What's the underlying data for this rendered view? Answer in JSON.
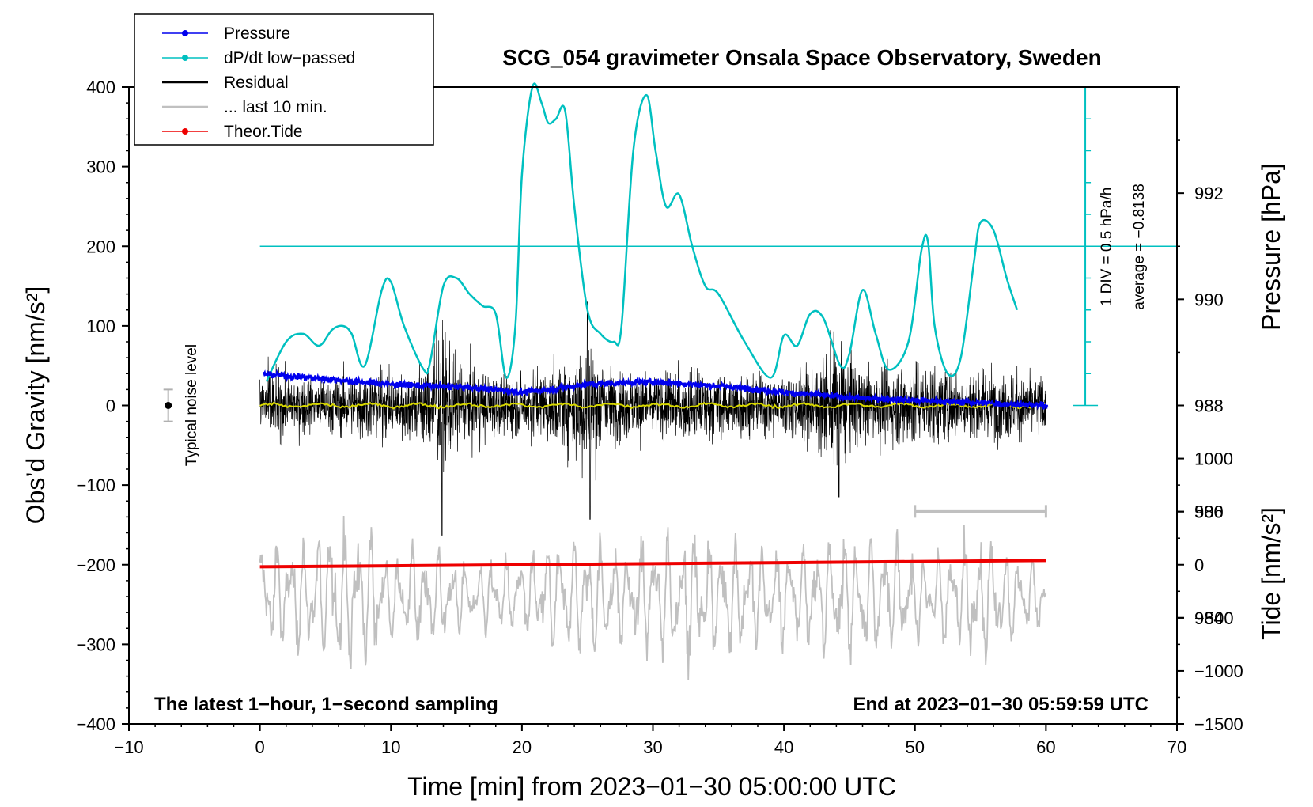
{
  "chart_data": {
    "type": "line",
    "title": "SCG_054 gravimeter Onsala Space Observatory, Sweden",
    "xlabel": "Time [min] from 2023−01−30 05:00:00 UTC",
    "ylabel_left": "Obs’d Gravity [nm/s²]",
    "ylabel_pressure": "Pressure [hPa]",
    "ylabel_tide": "Tide [nm/s²]",
    "xlim": [
      -10,
      70
    ],
    "ylim_left": [
      -400,
      400
    ],
    "ylim_pressure": [
      982,
      994
    ],
    "ylim_tide": [
      -1500,
      4500
    ],
    "x_ticks": [
      "−10",
      "0",
      "10",
      "20",
      "30",
      "40",
      "50",
      "60",
      "70"
    ],
    "x_tick_values": [
      -10,
      0,
      10,
      20,
      30,
      40,
      50,
      60,
      70
    ],
    "y_left_ticks": [
      "400",
      "300",
      "200",
      "100",
      "0",
      "−100",
      "−200",
      "−300",
      "−400"
    ],
    "y_left_tick_values": [
      400,
      300,
      200,
      100,
      0,
      -100,
      -200,
      -300,
      -400
    ],
    "pressure_ticks": [
      "992",
      "990",
      "988",
      "986",
      "984"
    ],
    "pressure_tick_values": [
      992,
      990,
      988,
      986,
      984
    ],
    "tide_ticks": [
      "1000",
      "500",
      "0",
      "−500",
      "−1000",
      "−1500"
    ],
    "tide_tick_values": [
      1000,
      500,
      0,
      -500,
      -1000,
      -1500
    ],
    "legend": [
      {
        "label": "Pressure",
        "color": "#0000ee",
        "marker": true
      },
      {
        "label": "dP/dt low−passed",
        "color": "#00c0c0",
        "marker": true
      },
      {
        "label": "Residual",
        "color": "#000000",
        "marker": false
      },
      {
        "label": "... last 10 min.",
        "color": "#c0c0c0",
        "marker": false
      },
      {
        "label": "Theor.Tide",
        "color": "#ee0000",
        "marker": true
      }
    ],
    "noise_label": "Typical noise level",
    "noise_level": {
      "x": -7,
      "y": 0,
      "err": 20
    },
    "scale_bar_text": "1 DIV = 0.5 hPa/h",
    "average_text": "average = −0.8138",
    "left_note": "The latest 1−hour, 1−second sampling",
    "right_note": "End at 2023−01−30 05:59:59 UTC",
    "last10min_range": [
      50,
      60
    ],
    "dpdt_zero_line": 200,
    "series": [
      {
        "name": "Pressure",
        "axis": "pressure",
        "x": [
          0,
          5,
          10,
          15,
          18,
          20,
          22,
          25,
          30,
          33,
          36,
          40,
          45,
          50,
          55,
          60
        ],
        "y": [
          988.6,
          988.5,
          988.4,
          988.35,
          988.3,
          988.25,
          988.3,
          988.4,
          988.45,
          988.4,
          988.35,
          988.25,
          988.15,
          988.1,
          988.05,
          988.0
        ]
      },
      {
        "name": "dP/dt low-passed",
        "axis": "left",
        "x": [
          0.5,
          2,
          3.3,
          4.5,
          5.5,
          6.3,
          7,
          8,
          9.3,
          10,
          11,
          12.5,
          13,
          14,
          15,
          16,
          17,
          18,
          18.8,
          19.5,
          20,
          20.8,
          21.5,
          22,
          22.6,
          23.3,
          24,
          25,
          26,
          27,
          27.6,
          28.5,
          29.5,
          30.2,
          31,
          32,
          33,
          34,
          35,
          37,
          39,
          40,
          41,
          42,
          43,
          44.3,
          45,
          46,
          47,
          48,
          49.5,
          50.5,
          51,
          51.5,
          52.5,
          53.5,
          54.5,
          55,
          56,
          57,
          57.8
        ],
        "y": [
          30,
          80,
          90,
          75,
          95,
          100,
          90,
          50,
          145,
          155,
          100,
          45,
          55,
          150,
          160,
          140,
          125,
          115,
          35,
          100,
          290,
          400,
          380,
          355,
          360,
          370,
          250,
          120,
          90,
          80,
          100,
          320,
          390,
          320,
          250,
          265,
          200,
          150,
          140,
          80,
          35,
          88,
          75,
          115,
          110,
          50,
          65,
          145,
          90,
          45,
          80,
          195,
          205,
          100,
          40,
          60,
          180,
          230,
          220,
          160,
          120
        ]
      },
      {
        "name": "Residual",
        "axis": "left",
        "x_range": [
          0,
          60
        ],
        "amplitude_envelope": [
          [
            0,
            60
          ],
          [
            2,
            45
          ],
          [
            5,
            40
          ],
          [
            8,
            55
          ],
          [
            10,
            50
          ],
          [
            12,
            60
          ],
          [
            13,
            80
          ],
          [
            14,
            110
          ],
          [
            15,
            70
          ],
          [
            17,
            55
          ],
          [
            19,
            45
          ],
          [
            21,
            55
          ],
          [
            23,
            60
          ],
          [
            25,
            110
          ],
          [
            27,
            55
          ],
          [
            30,
            50
          ],
          [
            33,
            55
          ],
          [
            36,
            50
          ],
          [
            40,
            45
          ],
          [
            42,
            60
          ],
          [
            44,
            100
          ],
          [
            46,
            55
          ],
          [
            50,
            70
          ],
          [
            52,
            60
          ],
          [
            55,
            55
          ],
          [
            58,
            50
          ],
          [
            60,
            45
          ]
        ],
        "extremes": [
          {
            "x": 13.9,
            "y": -163
          },
          {
            "x": 25.2,
            "y": -143
          },
          {
            "x": 44.2,
            "y": -115
          },
          {
            "x": 25.0,
            "y": 130
          },
          {
            "x": 13.5,
            "y": 110
          }
        ]
      },
      {
        "name": "... last 10 min.",
        "axis": "left",
        "x_range": [
          0,
          60
        ],
        "baseline": -240,
        "amplitude_envelope": [
          [
            0,
            75
          ],
          [
            3,
            70
          ],
          [
            6,
            95
          ],
          [
            8,
            90
          ],
          [
            10,
            60
          ],
          [
            14,
            65
          ],
          [
            16,
            40
          ],
          [
            20,
            55
          ],
          [
            24,
            70
          ],
          [
            28,
            60
          ],
          [
            32,
            85
          ],
          [
            36,
            70
          ],
          [
            40,
            60
          ],
          [
            44,
            75
          ],
          [
            48,
            70
          ],
          [
            52,
            55
          ],
          [
            55,
            80
          ],
          [
            58,
            45
          ],
          [
            60,
            40
          ]
        ]
      },
      {
        "name": "Theor.Tide",
        "axis": "tide",
        "x": [
          0,
          10,
          20,
          30,
          40,
          50,
          60
        ],
        "y": [
          -20,
          -10,
          0,
          10,
          20,
          30,
          40
        ]
      },
      {
        "name": "Residual mean",
        "axis": "left",
        "x": [
          0,
          60
        ],
        "y": [
          0,
          0
        ],
        "color": "#d8d800"
      }
    ]
  }
}
